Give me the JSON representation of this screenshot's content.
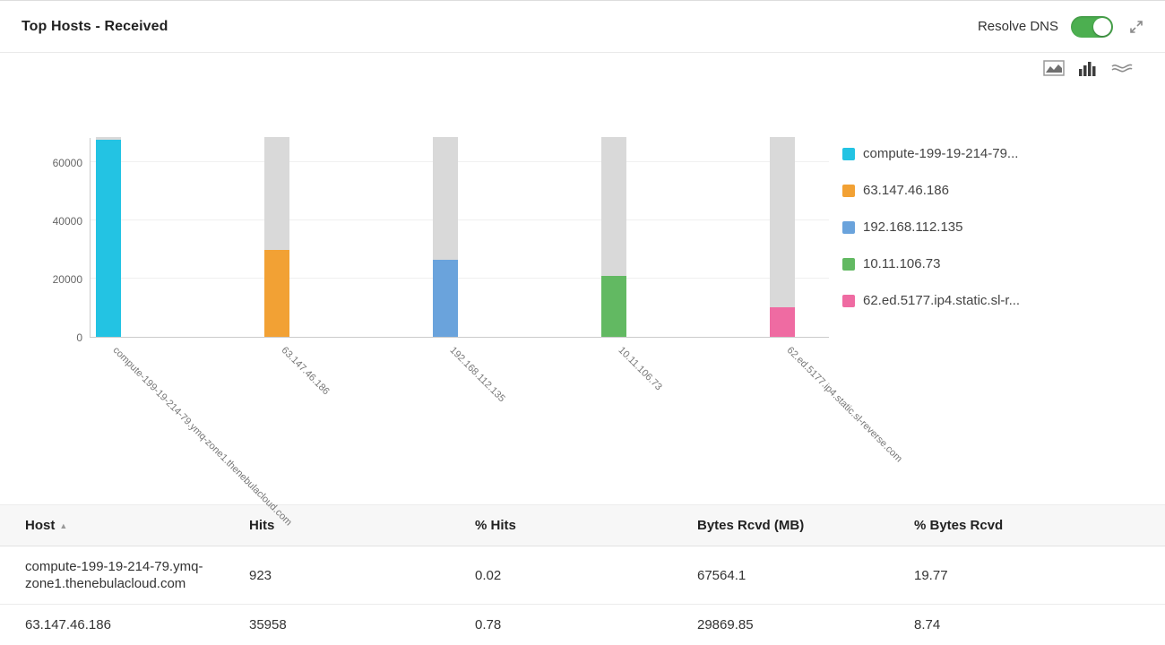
{
  "header": {
    "title": "Top Hosts - Received",
    "resolve_dns_label": "Resolve DNS",
    "resolve_dns_state": "on"
  },
  "chart_controls": {
    "icons": [
      "area-chart-icon",
      "bar-chart-icon",
      "stream-chart-icon"
    ],
    "active": "bar-chart-icon"
  },
  "chart_data": {
    "type": "bar",
    "title": "Top Hosts - Received",
    "categories": [
      "compute-199-19-214-79.ymq-zone1.thenebulacloud.com",
      "63.147.46.186",
      "192.168.112.135",
      "10.11.106.73",
      "62.ed.5177.ip4.static.sl-reverse.com"
    ],
    "values": [
      67564.1,
      29869.85,
      26500,
      21000,
      10200
    ],
    "track_total": 68600,
    "ylim": [
      0,
      68600
    ],
    "yticks": [
      0,
      20000,
      40000,
      60000
    ],
    "bar_colors": [
      "#23c3e3",
      "#f2a134",
      "#6aa3dc",
      "#62b962",
      "#ef6ba2"
    ],
    "track_color": "#d9d9d9",
    "grid": true,
    "legend_position": "right",
    "legend": [
      {
        "label": "compute-199-19-214-79...",
        "color": "#23c3e3"
      },
      {
        "label": "63.147.46.186",
        "color": "#f2a134"
      },
      {
        "label": "192.168.112.135",
        "color": "#6aa3dc"
      },
      {
        "label": "10.11.106.73",
        "color": "#62b962"
      },
      {
        "label": "62.ed.5177.ip4.static.sl-r...",
        "color": "#ef6ba2"
      }
    ]
  },
  "table": {
    "headers": [
      "Host",
      "Hits",
      "% Hits",
      "Bytes Rcvd (MB)",
      "% Bytes Rcvd"
    ],
    "sort_column": "Host",
    "sort_indicator": "▲",
    "rows": [
      [
        "compute-199-19-214-79.ymq-zone1.thenebulacloud.com",
        "923",
        "0.02",
        "67564.1",
        "19.77"
      ],
      [
        "63.147.46.186",
        "35958",
        "0.78",
        "29869.85",
        "8.74"
      ]
    ]
  }
}
